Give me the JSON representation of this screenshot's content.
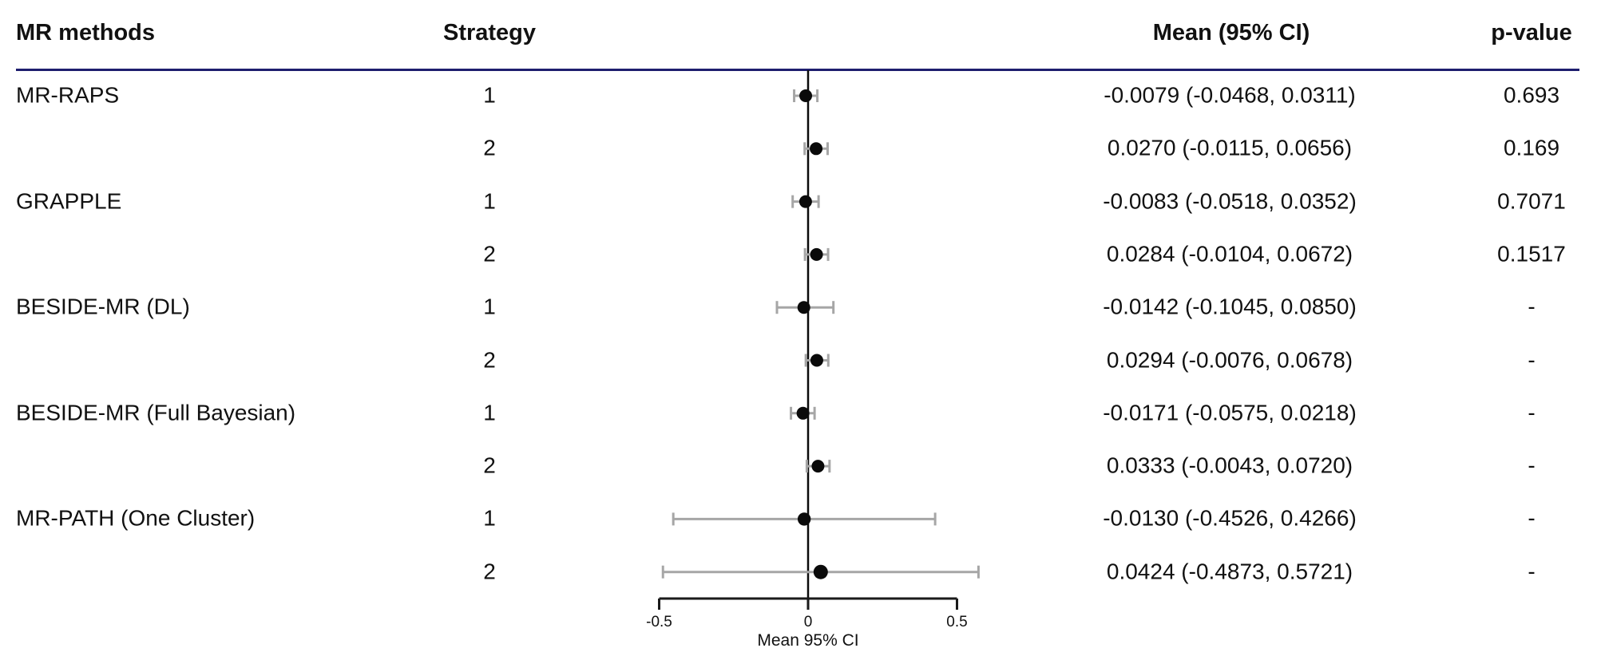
{
  "table": {
    "headers": {
      "methods": "MR methods",
      "strategy": "Strategy",
      "mean_ci": "Mean (95% CI)",
      "p_value": "p-value"
    }
  },
  "colors": {
    "header_rule": "#1e1e6e",
    "whisker": "#a6a6a6",
    "marker": "#0a0a0a",
    "axis": "#1a1a1a",
    "text": "#111111"
  },
  "chart_data": {
    "type": "forest",
    "title": "",
    "xlabel": "Mean 95% CI",
    "xlim": [
      -0.55,
      0.62
    ],
    "x_ticks": [
      -0.5,
      0,
      0.5
    ],
    "x_tick_labels": [
      "-0.5",
      "0",
      "0.5"
    ],
    "reference_line": 0,
    "legend_position": "none",
    "grid": false,
    "rows": [
      {
        "method": "MR-RAPS",
        "strategy": "1",
        "mean": -0.0079,
        "ci_low": -0.0468,
        "ci_high": 0.0311,
        "mean_ci_label": "-0.0079 (-0.0468, 0.0311)",
        "p_value": "0.693",
        "dot_r": 8
      },
      {
        "method": "",
        "strategy": "2",
        "mean": 0.027,
        "ci_low": -0.0115,
        "ci_high": 0.0656,
        "mean_ci_label": "0.0270 (-0.0115, 0.0656)",
        "p_value": "0.169",
        "dot_r": 8
      },
      {
        "method": "GRAPPLE",
        "strategy": "1",
        "mean": -0.0083,
        "ci_low": -0.0518,
        "ci_high": 0.0352,
        "mean_ci_label": "-0.0083 (-0.0518, 0.0352)",
        "p_value": "0.7071",
        "dot_r": 8
      },
      {
        "method": "",
        "strategy": "2",
        "mean": 0.0284,
        "ci_low": -0.0104,
        "ci_high": 0.0672,
        "mean_ci_label": "0.0284 (-0.0104, 0.0672)",
        "p_value": "0.1517",
        "dot_r": 8
      },
      {
        "method": "BESIDE-MR (DL)",
        "strategy": "1",
        "mean": -0.0142,
        "ci_low": -0.1045,
        "ci_high": 0.085,
        "mean_ci_label": "-0.0142 (-0.1045, 0.0850)",
        "p_value": "-",
        "dot_r": 8
      },
      {
        "method": "",
        "strategy": "2",
        "mean": 0.0294,
        "ci_low": -0.0076,
        "ci_high": 0.0678,
        "mean_ci_label": "0.0294 (-0.0076, 0.0678)",
        "p_value": "-",
        "dot_r": 8
      },
      {
        "method": "BESIDE-MR (Full Bayesian)",
        "strategy": "1",
        "mean": -0.0171,
        "ci_low": -0.0575,
        "ci_high": 0.0218,
        "mean_ci_label": "-0.0171 (-0.0575, 0.0218)",
        "p_value": "-",
        "dot_r": 8
      },
      {
        "method": "",
        "strategy": "2",
        "mean": 0.0333,
        "ci_low": -0.0043,
        "ci_high": 0.072,
        "mean_ci_label": "0.0333 (-0.0043, 0.0720)",
        "p_value": "-",
        "dot_r": 8
      },
      {
        "method": "MR-PATH (One Cluster)",
        "strategy": "1",
        "mean": -0.013,
        "ci_low": -0.4526,
        "ci_high": 0.4266,
        "mean_ci_label": "-0.0130 (-0.4526, 0.4266)",
        "p_value": "-",
        "dot_r": 8.2
      },
      {
        "method": "",
        "strategy": "2",
        "mean": 0.0424,
        "ci_low": -0.4873,
        "ci_high": 0.5721,
        "mean_ci_label": "0.0424 (-0.4873, 0.5721)",
        "p_value": "-",
        "dot_r": 9
      }
    ]
  }
}
